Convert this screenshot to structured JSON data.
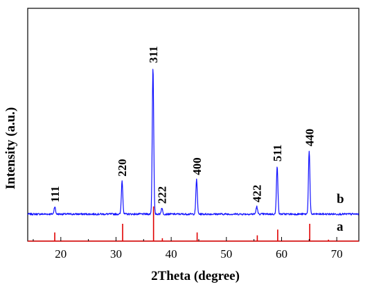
{
  "chart_data": {
    "type": "line",
    "xlabel": "2Theta (degree)",
    "ylabel": "Intensity (a.u.)",
    "xlim": [
      14,
      74
    ],
    "x_ticks": [
      20,
      30,
      40,
      50,
      60,
      70
    ],
    "x_tick_labels": [
      "20",
      "30",
      "40",
      "50",
      "60",
      "70"
    ],
    "y_ticks_labeled": false,
    "grid": false,
    "colors": {
      "pattern": "#1010ff",
      "reference": "#e00000",
      "axis": "#000000"
    },
    "series": [
      {
        "name": "b",
        "style": "measured-line",
        "baseline": 0.03,
        "peaks": [
          {
            "x": 18.9,
            "y": 0.08,
            "hkl": "111"
          },
          {
            "x": 31.1,
            "y": 0.25,
            "hkl": "220"
          },
          {
            "x": 36.7,
            "y": 1.0,
            "hkl": "311"
          },
          {
            "x": 38.3,
            "y": 0.07,
            "hkl": "222"
          },
          {
            "x": 44.6,
            "y": 0.26,
            "hkl": "400"
          },
          {
            "x": 55.5,
            "y": 0.08,
            "hkl": "422"
          },
          {
            "x": 59.2,
            "y": 0.35,
            "hkl": "511"
          },
          {
            "x": 65.0,
            "y": 0.45,
            "hkl": "440"
          }
        ]
      },
      {
        "name": "a",
        "style": "reference-sticks",
        "sticks": [
          {
            "x": 18.9,
            "y": 0.03
          },
          {
            "x": 31.2,
            "y": 0.06
          },
          {
            "x": 36.8,
            "y": 0.12
          },
          {
            "x": 38.4,
            "y": 0.01
          },
          {
            "x": 44.7,
            "y": 0.03
          },
          {
            "x": 55.6,
            "y": 0.02
          },
          {
            "x": 59.3,
            "y": 0.04
          },
          {
            "x": 65.1,
            "y": 0.06
          },
          {
            "x": 68.5,
            "y": 0.005
          }
        ]
      }
    ]
  }
}
